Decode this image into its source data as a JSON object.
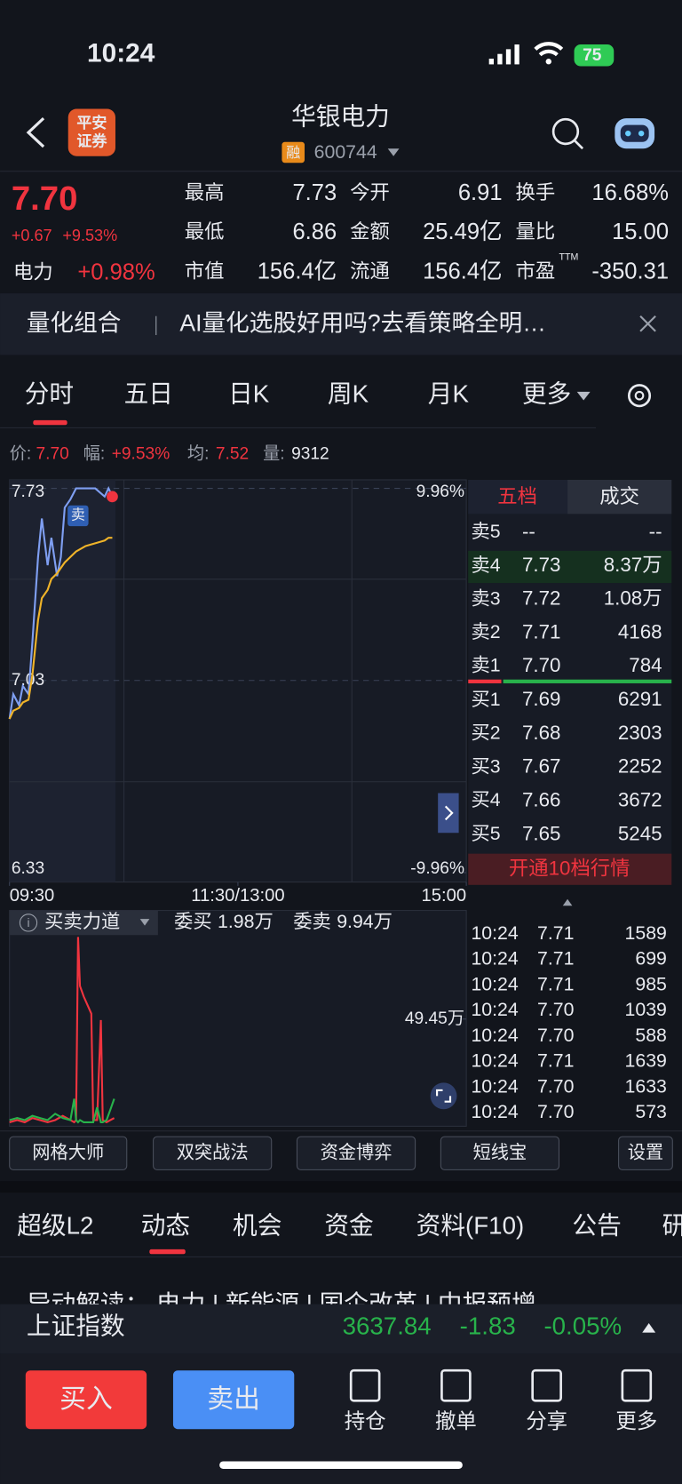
{
  "status_bar": {
    "time": "10:24",
    "battery": "75"
  },
  "header": {
    "logo": [
      "平安",
      "证券"
    ],
    "name": "华银电力",
    "margin_tag": "融",
    "code": "600744"
  },
  "quote": {
    "price": "7.70",
    "change": "+0.67",
    "change_pct": "+9.53%",
    "sector": "电力",
    "sector_pct": "+0.98%",
    "stats": [
      {
        "label": "最高",
        "value": "7.73",
        "color": "#f0343f"
      },
      {
        "label": "今开",
        "value": "6.91",
        "color": "#28b24b"
      },
      {
        "label": "换手",
        "value": "16.68%",
        "color": "#e8eaef"
      },
      {
        "label": "最低",
        "value": "6.86",
        "color": "#28b24b"
      },
      {
        "label": "金额",
        "value": "25.49亿",
        "color": "#e8eaef"
      },
      {
        "label": "量比",
        "value": "15.00",
        "color": "#e8eaef"
      },
      {
        "label": "市值",
        "value": "156.4亿",
        "color": "#e8eaef"
      },
      {
        "label": "流通",
        "value": "156.4亿",
        "color": "#e8eaef"
      },
      {
        "label": "市盈",
        "sup": "TTM",
        "value": "-350.31",
        "color": "#e8eaef"
      }
    ]
  },
  "banner": {
    "title": "量化组合",
    "text": "AI量化选股好用吗?去看策略全明…"
  },
  "chart_tabs": [
    "分时",
    "五日",
    "日K",
    "周K",
    "月K",
    "更多"
  ],
  "info_line": {
    "price_label": "价:",
    "price": "7.70",
    "pct_label": "幅:",
    "pct": "+9.53%",
    "avg_label": "均:",
    "avg": "7.52",
    "vol_label": "量:",
    "vol": "9312"
  },
  "chart_data": [
    {
      "type": "line",
      "x": [
        0,
        2,
        5,
        7,
        10,
        12,
        15,
        17,
        20,
        22,
        25,
        27,
        29,
        32,
        35,
        40,
        45,
        50,
        52,
        54
      ],
      "xlim": [
        0,
        240
      ],
      "xticks": [
        {
          "value": 0,
          "label": "09:30"
        },
        {
          "value": 120,
          "label": "11:30/13:00"
        },
        {
          "value": 240,
          "label": "15:00"
        }
      ],
      "ylim": [
        6.33,
        7.73
      ],
      "yticks": [
        7.73,
        7.03,
        6.33
      ],
      "y2lim": [
        -9.96,
        9.96
      ],
      "y2ticks": [
        {
          "value": 9.96,
          "label": "9.96%"
        },
        {
          "value": -9.96,
          "label": "-9.96%"
        }
      ],
      "series": [
        {
          "color": "#7f9ff2",
          "values": [
            6.89,
            6.98,
            6.94,
            7.01,
            6.98,
            7.17,
            7.48,
            7.62,
            7.45,
            7.55,
            7.41,
            7.48,
            7.66,
            7.69,
            7.73,
            7.73,
            7.73,
            7.7,
            7.73,
            7.7
          ]
        },
        {
          "color": "#f0b429",
          "values": [
            6.89,
            6.92,
            6.93,
            6.95,
            6.96,
            7.05,
            7.25,
            7.33,
            7.36,
            7.4,
            7.42,
            7.44,
            7.46,
            7.48,
            7.5,
            7.52,
            7.53,
            7.54,
            7.55,
            7.55
          ]
        }
      ],
      "annotations": [
        {
          "text": "卖",
          "x": 36,
          "y": 7.63
        }
      ]
    },
    {
      "type": "line",
      "title": "买卖力道",
      "x": [
        0,
        4,
        8,
        12,
        16,
        20,
        24,
        28,
        32,
        34,
        35,
        36,
        37,
        39,
        41,
        43,
        44,
        46,
        48,
        49,
        51,
        53,
        55
      ],
      "xlim": [
        0,
        240
      ],
      "ylim": [
        0,
        88
      ],
      "yticks": [
        {
          "value": 49.45,
          "label": "49.45万"
        }
      ],
      "series": [
        {
          "name": "委买",
          "value_label": "1.98万",
          "color": "#f0343f",
          "values": [
            1,
            2,
            1,
            3,
            2,
            1,
            2,
            4,
            2,
            1,
            2,
            88,
            65,
            60,
            56,
            52,
            2,
            2,
            49,
            2,
            1,
            2,
            3
          ]
        },
        {
          "name": "委卖",
          "value_label": "9.94万",
          "color": "#28b24b",
          "values": [
            2,
            3,
            2,
            4,
            3,
            2,
            5,
            3,
            2,
            12,
            2,
            1,
            2,
            1,
            1,
            1,
            1,
            8,
            1,
            1,
            2,
            7,
            12
          ]
        }
      ]
    }
  ],
  "order_book": {
    "tabs": [
      "五档",
      "成交"
    ],
    "asks": [
      {
        "label": "卖5",
        "price": "--",
        "volume": "--"
      },
      {
        "label": "卖4",
        "price": "7.73",
        "volume": "8.37万"
      },
      {
        "label": "卖3",
        "price": "7.72",
        "volume": "1.08万"
      },
      {
        "label": "卖2",
        "price": "7.71",
        "volume": "4168"
      },
      {
        "label": "卖1",
        "price": "7.70",
        "volume": "784"
      }
    ],
    "bids": [
      {
        "label": "买1",
        "price": "7.69",
        "volume": "6291"
      },
      {
        "label": "买2",
        "price": "7.68",
        "volume": "2303"
      },
      {
        "label": "买3",
        "price": "7.67",
        "volume": "2252"
      },
      {
        "label": "买4",
        "price": "7.66",
        "volume": "3672"
      },
      {
        "label": "买5",
        "price": "7.65",
        "volume": "5245"
      }
    ],
    "upgrade": "开通10档行情"
  },
  "trades": [
    {
      "time": "10:24",
      "price": "7.71",
      "volume": "1589",
      "color": "#f0343f"
    },
    {
      "time": "10:24",
      "price": "7.71",
      "volume": "699",
      "color": "#f0343f"
    },
    {
      "time": "10:24",
      "price": "7.71",
      "volume": "985",
      "color": "#f0343f"
    },
    {
      "time": "10:24",
      "price": "7.70",
      "volume": "1039",
      "color": "#28b24b"
    },
    {
      "time": "10:24",
      "price": "7.70",
      "volume": "588",
      "color": "#28b24b"
    },
    {
      "time": "10:24",
      "price": "7.71",
      "volume": "1639",
      "color": "#f0343f"
    },
    {
      "time": "10:24",
      "price": "7.70",
      "volume": "1633",
      "color": "#28b24b"
    },
    {
      "time": "10:24",
      "price": "7.70",
      "volume": "573",
      "color": "#f0343f"
    }
  ],
  "tools": [
    "网格大师",
    "双突战法",
    "资金博弈",
    "短线宝",
    "设置"
  ],
  "section_tabs": [
    "超级L2",
    "动态",
    "机会",
    "资金",
    "资料(F10)",
    "公告",
    "研"
  ],
  "news": "异动解读： 电力 | 新能源 | 国企改革 | 中报预增",
  "index_bar": {
    "name": "上证指数",
    "value": "3637.84",
    "change": "-1.83",
    "pct": "-0.05%"
  },
  "bottom_bar": {
    "buy": "买入",
    "sell": "卖出",
    "actions": [
      "持仓",
      "撤单",
      "分享",
      "更多"
    ]
  }
}
